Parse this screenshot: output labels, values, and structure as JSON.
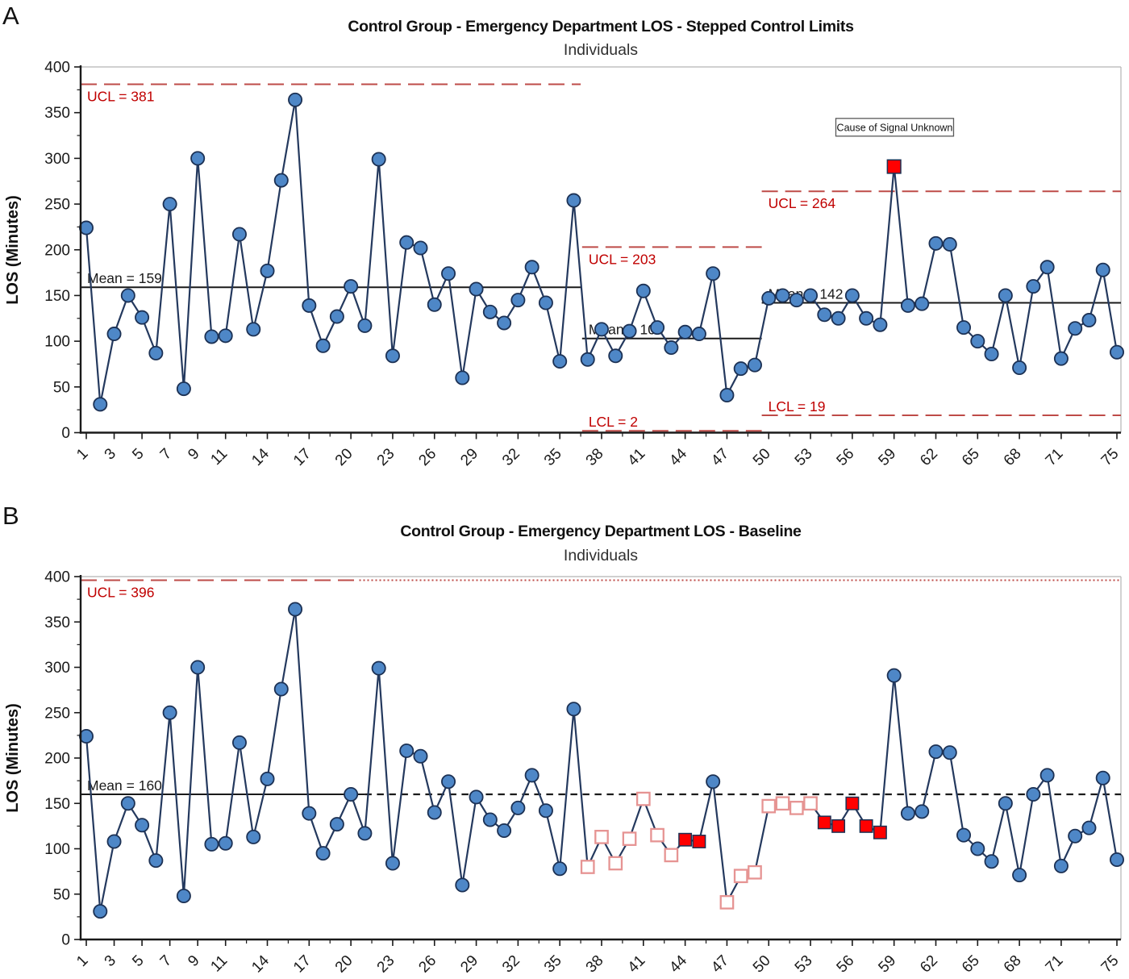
{
  "panels": [
    {
      "label": "A",
      "title": "Control Group - Emergency Department LOS - Stepped Control Limits",
      "subtitle": "Individuals",
      "y_axis_label": "LOS (Minutes)"
    },
    {
      "label": "B",
      "title": "Control Group - Emergency Department LOS - Baseline",
      "subtitle": "Individuals",
      "y_axis_label": "LOS (Minutes)"
    }
  ],
  "colors": {
    "point_blue": "#4E87C7",
    "marker_stroke": "#1C3154",
    "series_line": "#24395E",
    "limit_red": "#BE4B48",
    "limit_label_red": "#C00000",
    "signal_red": "#FF0000",
    "open_square_border": "#E69493",
    "mean_line": "#1a1a1a",
    "axis": "#1a1a1a",
    "frame_gray": "#B3B3B3",
    "annotation_border": "#595959"
  },
  "chart_data": [
    {
      "type": "line",
      "title": "Control Group - Emergency Department LOS - Stepped Control Limits",
      "subtitle": "Individuals",
      "xlabel": "",
      "ylabel": "LOS (Minutes)",
      "ylim": [
        0,
        400
      ],
      "y_ticks": [
        0,
        50,
        100,
        150,
        200,
        250,
        300,
        350,
        400
      ],
      "x_tick_labels": [
        1,
        3,
        5,
        7,
        9,
        11,
        14,
        17,
        20,
        23,
        26,
        29,
        32,
        35,
        38,
        41,
        44,
        47,
        50,
        53,
        56,
        59,
        62,
        65,
        68,
        71,
        75
      ],
      "grid": false,
      "legend": "none",
      "values": [
        224,
        31,
        108,
        150,
        126,
        87,
        250,
        48,
        300,
        105,
        106,
        217,
        113,
        177,
        276,
        364,
        139,
        95,
        127,
        160,
        117,
        299,
        84,
        208,
        202,
        140,
        174,
        60,
        157,
        132,
        120,
        145,
        181,
        142,
        78,
        254,
        80,
        113,
        84,
        111,
        155,
        115,
        93,
        110,
        108,
        174,
        41,
        70,
        74,
        147,
        150,
        145,
        150,
        129,
        125,
        150,
        125,
        118,
        291,
        139,
        141,
        207,
        206,
        115,
        100,
        86,
        150,
        71,
        160,
        181,
        81,
        114,
        123,
        178,
        88
      ],
      "signal_square_points": [
        59
      ],
      "open_square_points": [],
      "filled_square_points": [],
      "lines": [
        {
          "kind": "ucl",
          "value": 381,
          "label": "UCL = 381",
          "style": "dash",
          "from": null,
          "to": 36.5
        },
        {
          "kind": "mean",
          "value": 159,
          "label": "Mean = 159",
          "style": "solid",
          "from": null,
          "to": 36.5
        },
        {
          "kind": "ucl",
          "value": 203,
          "label": "UCL = 203",
          "style": "dash",
          "from": 36.6,
          "to": 49.5
        },
        {
          "kind": "mean",
          "value": 103,
          "label": "Mean = 103",
          "style": "solid",
          "from": 36.6,
          "to": 49.5
        },
        {
          "kind": "lcl",
          "value": 2,
          "label": "LCL = 2",
          "style": "dash",
          "from": 36.6,
          "to": 49.5
        },
        {
          "kind": "ucl",
          "value": 264,
          "label": "UCL = 264",
          "style": "dash",
          "from": 49.5,
          "to": null
        },
        {
          "kind": "mean",
          "value": 142,
          "label": "Mean = 142",
          "style": "solid",
          "from": 49.5,
          "to": null
        },
        {
          "kind": "lcl",
          "value": 19,
          "label": "LCL = 19",
          "style": "dash",
          "from": 49.5,
          "to": null
        }
      ],
      "annotation": {
        "text": "Cause of Signal Unknown",
        "at_point": 59,
        "y_value": 334
      }
    },
    {
      "type": "line",
      "title": "Control Group - Emergency Department LOS - Baseline",
      "subtitle": "Individuals",
      "xlabel": "",
      "ylabel": "LOS (Minutes)",
      "ylim": [
        0,
        400
      ],
      "y_ticks": [
        0,
        50,
        100,
        150,
        200,
        250,
        300,
        350,
        400
      ],
      "x_tick_labels": [
        1,
        3,
        5,
        7,
        9,
        11,
        14,
        17,
        20,
        23,
        26,
        29,
        32,
        35,
        38,
        41,
        44,
        47,
        50,
        53,
        56,
        59,
        62,
        65,
        68,
        71,
        75
      ],
      "grid": false,
      "legend": "none",
      "values": [
        224,
        31,
        108,
        150,
        126,
        87,
        250,
        48,
        300,
        105,
        106,
        217,
        113,
        177,
        276,
        364,
        139,
        95,
        127,
        160,
        117,
        299,
        84,
        208,
        202,
        140,
        174,
        60,
        157,
        132,
        120,
        145,
        181,
        142,
        78,
        254,
        80,
        113,
        84,
        111,
        155,
        115,
        93,
        110,
        108,
        174,
        41,
        70,
        74,
        147,
        150,
        145,
        150,
        129,
        125,
        150,
        125,
        118,
        291,
        139,
        141,
        207,
        206,
        115,
        100,
        86,
        150,
        71,
        160,
        181,
        81,
        114,
        123,
        178,
        88
      ],
      "signal_square_points": [],
      "open_square_points": [
        37,
        38,
        39,
        40,
        41,
        42,
        43,
        47,
        48,
        49,
        50,
        51,
        52,
        53
      ],
      "filled_square_points": [
        44,
        45,
        54,
        55,
        56,
        57,
        58
      ],
      "lines": [
        {
          "kind": "ucl",
          "value": 396,
          "label": "UCL = 396",
          "style": "dash",
          "from": null,
          "to": 20.6
        },
        {
          "kind": "ucl",
          "value": 396,
          "label": null,
          "style": "dot",
          "from": 20.6,
          "to": null
        },
        {
          "kind": "mean",
          "value": 160,
          "label": "Mean = 160",
          "style": "solid",
          "from": null,
          "to": 21.0
        },
        {
          "kind": "mean",
          "value": 160,
          "label": null,
          "style": "meandash",
          "from": 21.0,
          "to": null
        }
      ],
      "annotation": null
    }
  ]
}
